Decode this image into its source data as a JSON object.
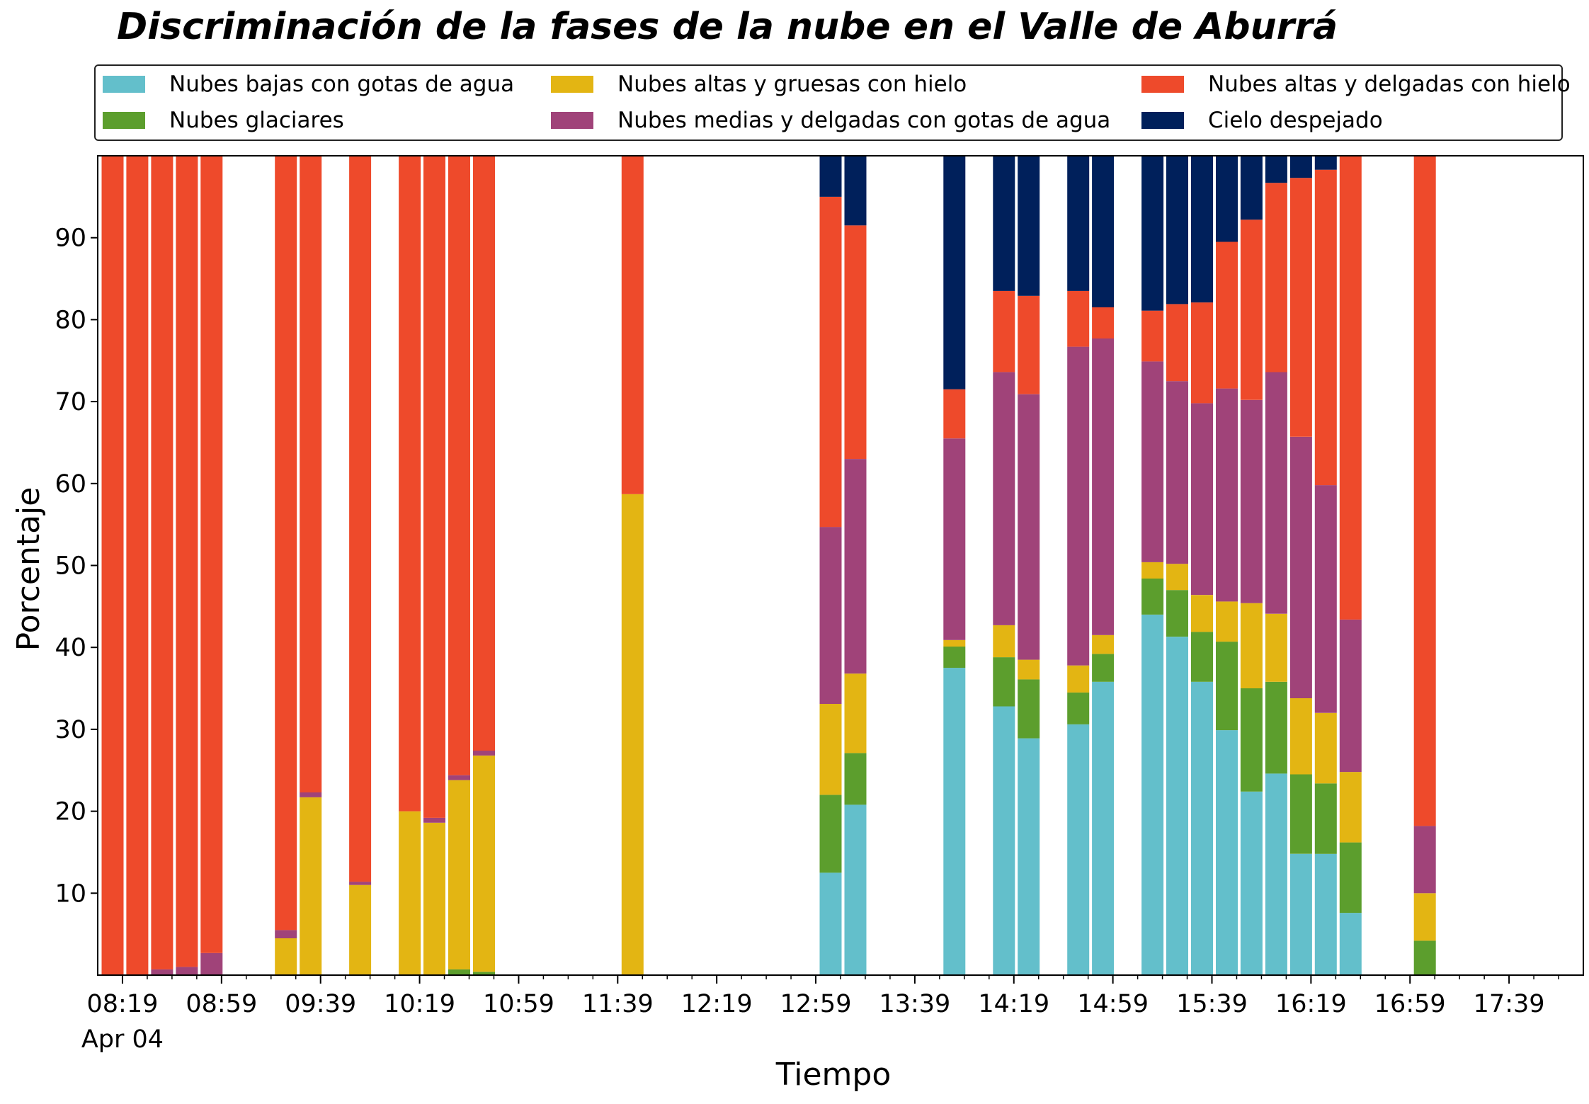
{
  "chart_data": {
    "type": "bar",
    "stacked": true,
    "title": "Discriminación de la fases de la nube en el Valle de Aburrá",
    "xlabel": "Tiempo",
    "ylabel": "Porcentaje",
    "ylim": [
      0,
      100
    ],
    "yticks": [
      10,
      20,
      30,
      40,
      50,
      60,
      70,
      80,
      90
    ],
    "xlim": [
      "08:09",
      "18:09"
    ],
    "x_major_ticks": [
      "08:19",
      "08:59",
      "09:39",
      "10:19",
      "10:59",
      "11:39",
      "12:19",
      "12:59",
      "13:39",
      "14:19",
      "14:59",
      "15:39",
      "16:19",
      "16:59",
      "17:39"
    ],
    "x_date_label": "Apr 04",
    "grid": false,
    "legend": {
      "placement": "top",
      "columns": 3
    },
    "series": [
      {
        "name": "Nubes bajas con gotas de agua",
        "color": "#63bfcb"
      },
      {
        "name": "Nubes glaciares",
        "color": "#5c9e2d"
      },
      {
        "name": "Nubes altas y gruesas con hielo",
        "color": "#e3b513"
      },
      {
        "name": "Nubes medias y delgadas con gotas de agua",
        "color": "#a04379"
      },
      {
        "name": "Nubes altas y delgadas con hielo",
        "color": "#ee4a2b"
      },
      {
        "name": "Cielo despejado",
        "color": "#00205b"
      }
    ],
    "bars": [
      {
        "x": "08:15",
        "values": [
          0,
          0,
          0,
          0,
          100,
          0
        ]
      },
      {
        "x": "08:25",
        "values": [
          0,
          0,
          0,
          0,
          100,
          0
        ]
      },
      {
        "x": "08:35",
        "values": [
          0,
          0,
          0,
          0.7,
          99.3,
          0
        ]
      },
      {
        "x": "08:45",
        "values": [
          0,
          0,
          0,
          1.0,
          99.0,
          0
        ]
      },
      {
        "x": "08:55",
        "values": [
          0,
          0,
          0,
          2.7,
          97.3,
          0
        ]
      },
      {
        "x": "09:25",
        "values": [
          0,
          0,
          4.5,
          1.0,
          94.5,
          0
        ]
      },
      {
        "x": "09:35",
        "values": [
          0,
          0,
          21.7,
          0.6,
          77.7,
          0
        ]
      },
      {
        "x": "09:55",
        "values": [
          0,
          0,
          11.0,
          0.4,
          88.6,
          0
        ]
      },
      {
        "x": "10:15",
        "values": [
          0,
          0,
          20.0,
          0,
          80.0,
          0
        ]
      },
      {
        "x": "10:25",
        "values": [
          0,
          0,
          18.6,
          0.6,
          80.8,
          0
        ]
      },
      {
        "x": "10:35",
        "values": [
          0,
          0.7,
          23.1,
          0.6,
          75.6,
          0
        ]
      },
      {
        "x": "10:45",
        "values": [
          0,
          0.4,
          26.4,
          0.6,
          72.6,
          0
        ]
      },
      {
        "x": "11:45",
        "values": [
          0,
          0,
          58.7,
          0,
          41.3,
          0
        ]
      },
      {
        "x": "13:05",
        "values": [
          12.5,
          9.5,
          11.1,
          21.6,
          40.3,
          5.0
        ]
      },
      {
        "x": "13:15",
        "values": [
          20.8,
          6.3,
          9.7,
          26.2,
          28.5,
          8.5
        ]
      },
      {
        "x": "13:55",
        "values": [
          37.5,
          2.6,
          0.8,
          24.6,
          6.0,
          28.5
        ]
      },
      {
        "x": "14:15",
        "values": [
          32.8,
          6.0,
          3.9,
          30.9,
          9.9,
          16.5
        ]
      },
      {
        "x": "14:25",
        "values": [
          28.9,
          7.2,
          2.4,
          32.4,
          12.0,
          17.1
        ]
      },
      {
        "x": "14:45",
        "values": [
          30.6,
          3.9,
          3.3,
          38.9,
          6.8,
          16.5
        ]
      },
      {
        "x": "14:55",
        "values": [
          35.8,
          3.4,
          2.3,
          36.2,
          3.8,
          18.5
        ]
      },
      {
        "x": "15:15",
        "values": [
          44.0,
          4.4,
          2.0,
          24.5,
          6.2,
          18.9
        ]
      },
      {
        "x": "15:25",
        "values": [
          41.3,
          5.7,
          3.2,
          22.3,
          9.4,
          18.1
        ]
      },
      {
        "x": "15:35",
        "values": [
          35.8,
          6.1,
          4.5,
          23.4,
          12.3,
          17.9
        ]
      },
      {
        "x": "15:45",
        "values": [
          29.9,
          10.8,
          4.9,
          26.0,
          17.9,
          10.5
        ]
      },
      {
        "x": "15:55",
        "values": [
          22.4,
          12.6,
          10.4,
          24.8,
          22.0,
          7.8
        ]
      },
      {
        "x": "16:05",
        "values": [
          24.6,
          11.2,
          8.3,
          29.5,
          23.1,
          3.3
        ]
      },
      {
        "x": "16:15",
        "values": [
          14.8,
          9.7,
          9.3,
          31.9,
          31.6,
          2.7
        ]
      },
      {
        "x": "16:25",
        "values": [
          14.8,
          8.6,
          8.6,
          27.8,
          38.5,
          1.7
        ]
      },
      {
        "x": "16:35",
        "values": [
          7.6,
          8.6,
          8.6,
          18.6,
          56.6,
          0
        ]
      },
      {
        "x": "17:05",
        "values": [
          0,
          4.2,
          5.8,
          8.2,
          81.8,
          0
        ]
      }
    ]
  }
}
